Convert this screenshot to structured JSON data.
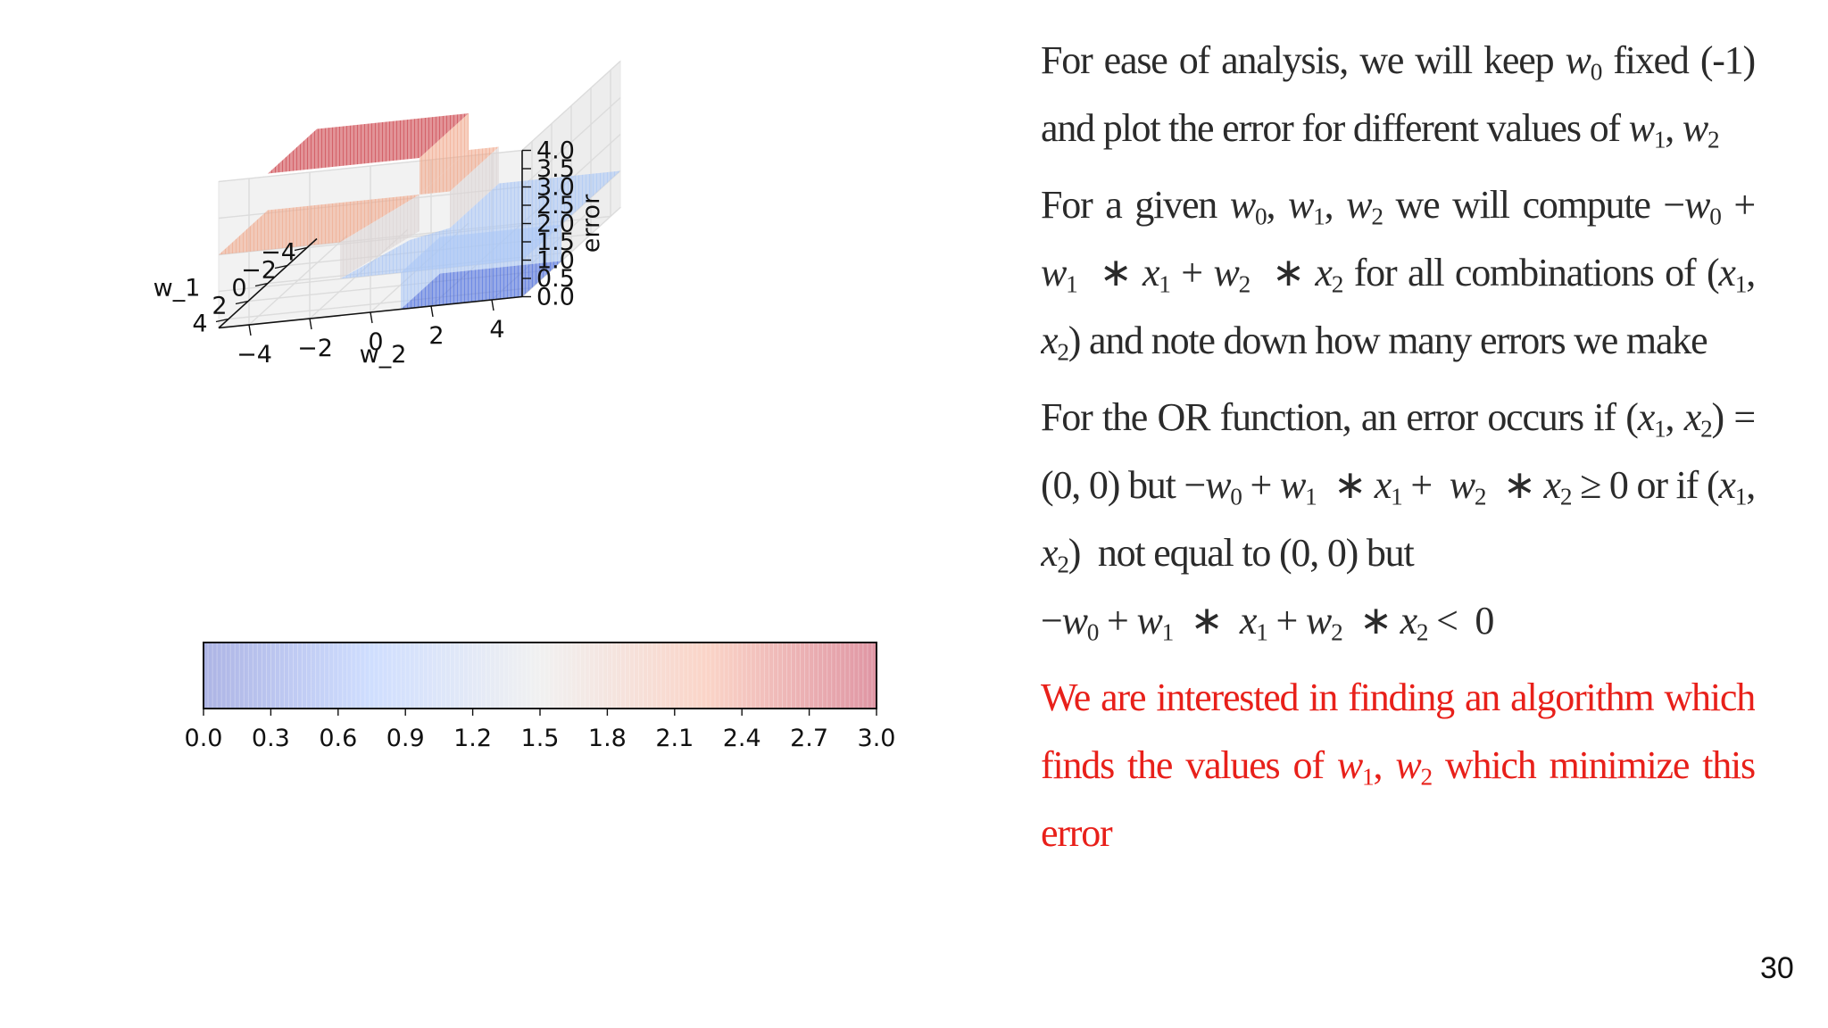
{
  "slide": {
    "page_number": "30",
    "paragraphs": [
      {
        "id": "p1",
        "text": "For ease of analysis, we will keep w0 fixed (-1) and plot the error for different values of w1, w2"
      },
      {
        "id": "p2",
        "text": "For a given w0, w1, w2 we will compute −w0 + w1 ∗ x1 + w2 ∗ x2 for all combinations of (x1, x2) and note down how many errors we make"
      },
      {
        "id": "p3",
        "text": "For the OR function, an error occurs if (x1, x2) = (0, 0) but −w0 + w1 ∗ x1 + w2 ∗ x2 ≥ 0 or if (x1, x2) not equal to (0, 0) but −w0 + w1 ∗ x1 + w2 ∗ x2 < 0"
      },
      {
        "id": "p4",
        "text": "We are interested in finding an algorithm which finds the values of w1, w2 which minimize this error",
        "color": "#e8201a"
      }
    ]
  },
  "chart_data": [
    {
      "type": "surface3d",
      "title": "",
      "xlabel": "w_1",
      "ylabel": "w_2",
      "zlabel": "error",
      "x_ticks": [
        "−4",
        "−2",
        "0",
        "2",
        "4"
      ],
      "y_ticks": [
        "−4",
        "−2",
        "0",
        "2",
        "4"
      ],
      "z_ticks": [
        "0.0",
        "0.5",
        "1.0",
        "1.5",
        "2.0",
        "2.5",
        "3.0",
        "3.5",
        "4.0"
      ],
      "xlim": [
        -5,
        5
      ],
      "ylim": [
        -5,
        5
      ],
      "zlim": [
        0,
        4
      ],
      "colormap": "coolwarm",
      "grid": true,
      "levels": [
        {
          "error": 3,
          "color": "#c93a42",
          "region": "w1 < 0, w2 < 0"
        },
        {
          "error": 2,
          "color": "#f0a78a",
          "region": "w1 < 0, w2 > 0"
        },
        {
          "error": 2,
          "color": "#f0a78a",
          "region": "w1 > 0, w2 < 0"
        },
        {
          "error": 1,
          "color": "#a9c6f5",
          "region": "w1 + w2 < 1 (w1, w2 > 0)"
        },
        {
          "error": 0,
          "color": "#4d6fe0",
          "region": "w1 > 1, w2 > 1"
        }
      ]
    },
    {
      "type": "colorbar",
      "orientation": "horizontal",
      "colormap": "coolwarm",
      "range": [
        0.0,
        3.0
      ],
      "ticks": [
        "0.0",
        "0.3",
        "0.6",
        "0.9",
        "1.2",
        "1.5",
        "1.8",
        "2.1",
        "2.4",
        "2.7",
        "3.0"
      ]
    }
  ],
  "colors": {
    "high_error": "#b40426",
    "mid": "#dddddd",
    "low_error": "#3b4cc0",
    "highlight_text": "#e8201a"
  }
}
